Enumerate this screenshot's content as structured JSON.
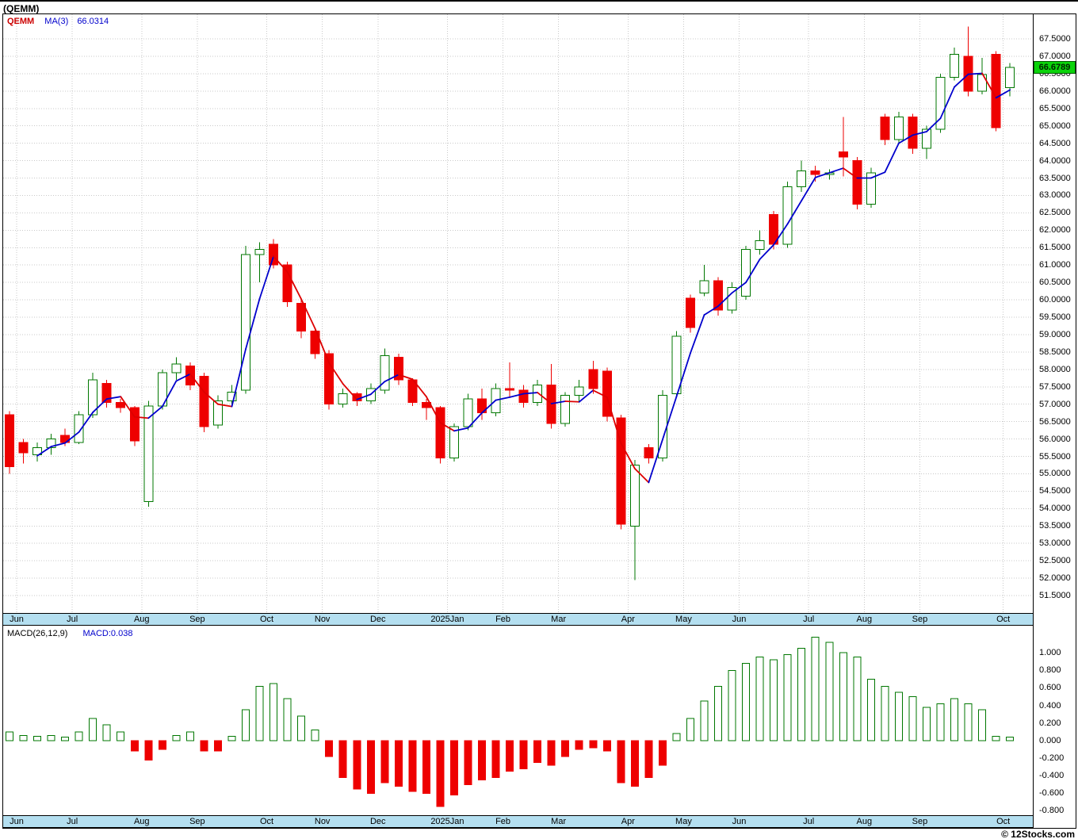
{
  "header": {
    "title": "(QEMM)"
  },
  "footer": {
    "copyright": "© 12Stocks.com"
  },
  "colors": {
    "grid": "#c9c9c9",
    "band_bg": "#b4dff0",
    "badge_bg": "#0bd30b",
    "legend_symbol": "#cc0000",
    "legend_ma": "#0000cc",
    "macd_value": "#0000cc"
  },
  "price_panel": {
    "legend": {
      "symbol": "QEMM",
      "ma_label": "MA(3)",
      "ma_value": "66.0314"
    },
    "last_price_badge": "66.6789",
    "y_axis": {
      "min": 51.5,
      "max": 67.5,
      "step": 0.5
    },
    "y_ticks": [
      "67.5000",
      "67.0000",
      "66.5000",
      "66.0000",
      "65.5000",
      "65.0000",
      "64.5000",
      "64.0000",
      "63.5000",
      "63.0000",
      "62.5000",
      "62.0000",
      "61.5000",
      "61.0000",
      "60.5000",
      "60.0000",
      "59.5000",
      "59.0000",
      "58.5000",
      "58.0000",
      "57.5000",
      "57.0000",
      "56.5000",
      "56.0000",
      "55.5000",
      "55.0000",
      "54.5000",
      "54.0000",
      "53.5000",
      "53.0000",
      "52.5000",
      "52.0000",
      "51.5000"
    ]
  },
  "macd_panel": {
    "legend": {
      "name": "MACD(26,12,9)",
      "value_label": "MACD:0.038"
    },
    "y_axis": {
      "min": -0.85,
      "max": 1.3
    },
    "y_ticks": [
      "1.000",
      "0.800",
      "0.600",
      "0.400",
      "0.200",
      "0.000",
      "-0.200",
      "-0.400",
      "-0.600",
      "-0.800"
    ]
  },
  "x_axis": {
    "months": [
      {
        "label": "Jun",
        "index": 0
      },
      {
        "label": "Jul",
        "index": 4
      },
      {
        "label": "Aug",
        "index": 9
      },
      {
        "label": "Sep",
        "index": 13
      },
      {
        "label": "Oct",
        "index": 18
      },
      {
        "label": "Nov",
        "index": 22
      },
      {
        "label": "Dec",
        "index": 26
      },
      {
        "label": "2025Jan",
        "index": 31
      },
      {
        "label": "Feb",
        "index": 35
      },
      {
        "label": "Mar",
        "index": 39
      },
      {
        "label": "Apr",
        "index": 44
      },
      {
        "label": "May",
        "index": 48
      },
      {
        "label": "Jun",
        "index": 52
      },
      {
        "label": "Jul",
        "index": 57
      },
      {
        "label": "Aug",
        "index": 61
      },
      {
        "label": "Sep",
        "index": 65
      },
      {
        "label": "Oct",
        "index": 71
      }
    ]
  },
  "chart_data": [
    {
      "type": "candlestick",
      "title": "QEMM weekly price with MA(3) overlay",
      "ylim": [
        51.5,
        67.5
      ],
      "y_step": 0.5,
      "up_color": "#007700",
      "down_color": "#ee0000",
      "last_close": 66.6789,
      "overlay": {
        "name": "MA(3)",
        "period": 3,
        "value": 66.0314,
        "up_color": "#0000cc",
        "down_color": "#dd0000"
      },
      "ohlc": [
        [
          56.7,
          56.8,
          55.0,
          55.2
        ],
        [
          55.9,
          56.0,
          55.3,
          55.6
        ],
        [
          55.55,
          55.9,
          55.35,
          55.75
        ],
        [
          55.75,
          56.15,
          55.55,
          56.0
        ],
        [
          56.1,
          56.3,
          55.8,
          55.9
        ],
        [
          55.9,
          56.8,
          55.85,
          56.7
        ],
        [
          56.7,
          57.9,
          56.6,
          57.7
        ],
        [
          57.6,
          57.7,
          56.9,
          57.05
        ],
        [
          57.05,
          57.15,
          56.75,
          56.9
        ],
        [
          56.9,
          56.95,
          55.8,
          55.95
        ],
        [
          54.2,
          57.1,
          54.05,
          56.95
        ],
        [
          56.95,
          58.0,
          56.85,
          57.9
        ],
        [
          57.9,
          58.35,
          57.7,
          58.15
        ],
        [
          58.1,
          58.2,
          57.4,
          57.55
        ],
        [
          57.8,
          57.9,
          56.2,
          56.35
        ],
        [
          56.4,
          57.25,
          56.3,
          57.1
        ],
        [
          57.1,
          57.55,
          57.0,
          57.35
        ],
        [
          57.4,
          61.55,
          57.3,
          61.3
        ],
        [
          61.3,
          61.65,
          60.5,
          61.45
        ],
        [
          61.6,
          61.75,
          60.9,
          61.0
        ],
        [
          61.0,
          61.1,
          59.8,
          59.95
        ],
        [
          59.9,
          60.0,
          58.9,
          59.1
        ],
        [
          59.1,
          59.2,
          58.3,
          58.45
        ],
        [
          58.45,
          58.55,
          56.85,
          57.0
        ],
        [
          57.0,
          57.45,
          56.9,
          57.3
        ],
        [
          57.3,
          57.35,
          56.95,
          57.1
        ],
        [
          57.1,
          57.6,
          57.0,
          57.45
        ],
        [
          57.4,
          58.6,
          57.3,
          58.4
        ],
        [
          58.35,
          58.45,
          57.55,
          57.7
        ],
        [
          57.7,
          57.75,
          56.95,
          57.05
        ],
        [
          57.05,
          57.15,
          56.55,
          56.9
        ],
        [
          56.9,
          56.95,
          55.3,
          55.45
        ],
        [
          55.45,
          56.45,
          55.35,
          56.35
        ],
        [
          56.35,
          57.3,
          56.25,
          57.15
        ],
        [
          57.15,
          57.45,
          56.55,
          56.75
        ],
        [
          56.75,
          57.6,
          56.65,
          57.45
        ],
        [
          57.45,
          58.2,
          57.2,
          57.4
        ],
        [
          57.4,
          57.55,
          56.9,
          57.05
        ],
        [
          57.05,
          57.7,
          56.95,
          57.55
        ],
        [
          57.55,
          58.15,
          56.3,
          56.45
        ],
        [
          56.45,
          57.35,
          56.35,
          57.25
        ],
        [
          57.25,
          57.7,
          57.05,
          57.5
        ],
        [
          58.0,
          58.25,
          57.3,
          57.45
        ],
        [
          57.95,
          58.05,
          56.5,
          56.65
        ],
        [
          56.6,
          56.7,
          53.4,
          53.55
        ],
        [
          53.5,
          55.4,
          51.95,
          55.25
        ],
        [
          55.75,
          55.85,
          55.3,
          55.45
        ],
        [
          55.45,
          57.4,
          55.35,
          57.25
        ],
        [
          57.3,
          59.1,
          57.2,
          58.95
        ],
        [
          60.05,
          60.15,
          59.05,
          59.2
        ],
        [
          60.2,
          61.0,
          60.1,
          60.55
        ],
        [
          60.55,
          60.65,
          59.55,
          59.7
        ],
        [
          59.7,
          60.5,
          59.6,
          60.35
        ],
        [
          60.1,
          61.55,
          60.0,
          61.45
        ],
        [
          61.45,
          62.0,
          61.3,
          61.7
        ],
        [
          62.45,
          62.55,
          61.45,
          61.6
        ],
        [
          61.6,
          63.4,
          61.5,
          63.25
        ],
        [
          63.25,
          64.0,
          63.1,
          63.7
        ],
        [
          63.7,
          63.85,
          63.4,
          63.6
        ],
        [
          63.6,
          63.75,
          63.45,
          63.65
        ],
        [
          64.25,
          65.25,
          63.55,
          64.1
        ],
        [
          64.0,
          64.1,
          62.6,
          62.75
        ],
        [
          62.75,
          63.8,
          62.65,
          63.65
        ],
        [
          65.25,
          65.35,
          64.45,
          64.6
        ],
        [
          64.6,
          65.4,
          64.5,
          65.25
        ],
        [
          65.25,
          65.35,
          64.2,
          64.35
        ],
        [
          64.35,
          65.0,
          64.05,
          64.9
        ],
        [
          64.9,
          66.5,
          64.8,
          66.4
        ],
        [
          66.4,
          67.25,
          66.3,
          67.05
        ],
        [
          67.0,
          67.85,
          65.85,
          66.0
        ],
        [
          66.0,
          66.95,
          65.9,
          66.47
        ],
        [
          67.05,
          67.15,
          64.85,
          64.95
        ],
        [
          66.1,
          66.8,
          65.85,
          66.6789
        ]
      ]
    },
    {
      "type": "bar",
      "title": "MACD(26,12,9) histogram",
      "ylim": [
        -0.85,
        1.3
      ],
      "up_color": "#007700",
      "down_color": "#ee0000",
      "last": 0.038,
      "values": [
        0.1,
        0.06,
        0.05,
        0.06,
        0.04,
        0.1,
        0.25,
        0.18,
        0.1,
        -0.12,
        -0.22,
        -0.1,
        0.06,
        0.1,
        -0.12,
        -0.12,
        0.05,
        0.35,
        0.62,
        0.65,
        0.48,
        0.28,
        0.12,
        -0.18,
        -0.42,
        -0.55,
        -0.6,
        -0.48,
        -0.52,
        -0.58,
        -0.6,
        -0.75,
        -0.62,
        -0.5,
        -0.45,
        -0.42,
        -0.35,
        -0.32,
        -0.25,
        -0.28,
        -0.18,
        -0.1,
        -0.08,
        -0.12,
        -0.48,
        -0.52,
        -0.42,
        -0.28,
        0.08,
        0.25,
        0.45,
        0.62,
        0.8,
        0.88,
        0.95,
        0.92,
        0.98,
        1.05,
        1.18,
        1.12,
        1.0,
        0.95,
        0.7,
        0.62,
        0.55,
        0.5,
        0.38,
        0.42,
        0.48,
        0.42,
        0.35,
        0.05,
        0.038
      ]
    }
  ]
}
